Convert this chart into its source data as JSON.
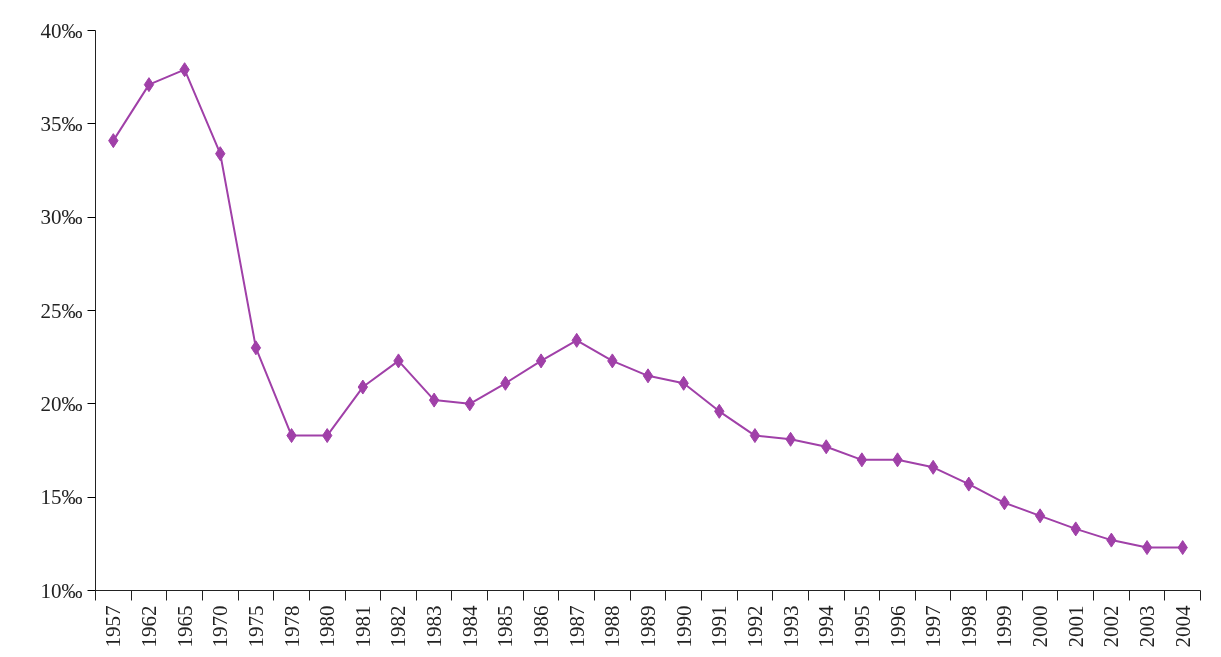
{
  "chart_data": {
    "type": "line",
    "categories": [
      "1957",
      "1962",
      "1965",
      "1970",
      "1975",
      "1978",
      "1980",
      "1981",
      "1982",
      "1983",
      "1984",
      "1985",
      "1986",
      "1987",
      "1988",
      "1989",
      "1990",
      "1991",
      "1992",
      "1993",
      "1994",
      "1995",
      "1996",
      "1997",
      "1998",
      "1999",
      "2000",
      "2001",
      "2002",
      "2003",
      "2004"
    ],
    "series": [
      {
        "color": "#a040a8",
        "values": [
          34.1,
          37.1,
          37.9,
          33.4,
          23.0,
          18.3,
          18.3,
          20.9,
          22.3,
          20.2,
          20.0,
          21.1,
          22.3,
          23.4,
          22.3,
          21.5,
          21.1,
          19.6,
          18.3,
          18.1,
          17.7,
          17.0,
          17.0,
          16.6,
          15.7,
          14.7,
          14.0,
          13.3,
          12.7,
          12.3,
          12.3
        ]
      }
    ],
    "ylim": [
      10,
      40
    ],
    "yticks": [
      {
        "value": 10,
        "label": "10‰"
      },
      {
        "value": 15,
        "label": "15‰"
      },
      {
        "value": 20,
        "label": "20‰"
      },
      {
        "value": 25,
        "label": "25‰"
      },
      {
        "value": 30,
        "label": "30‰"
      },
      {
        "value": 35,
        "label": "35‰"
      },
      {
        "value": 40,
        "label": "40‰"
      }
    ],
    "marker": "diamond",
    "line_style": "solid",
    "grid": false
  }
}
